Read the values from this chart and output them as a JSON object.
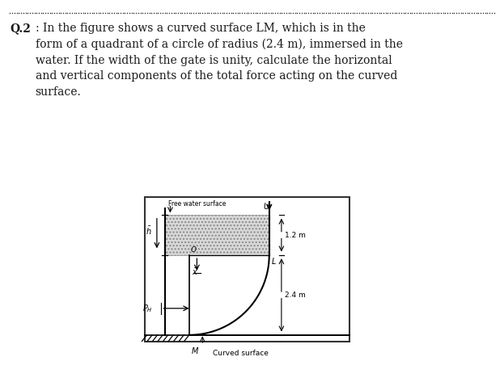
{
  "text_block": "Q.2: In the figure shows a curved surface LM, which is in the\nform of a quadrant of a circle of radius (2.4 m), immersed in the\nwater. If the width of the gate is unity, calculate the horizontal\nand vertical components of the total force acting on the curved\nsurface.",
  "fig_width": 6.23,
  "fig_height": 4.73,
  "dpi": 100,
  "bg_color": "#ffffff",
  "text_color": "#1a1a1a",
  "label_free_water": "Free water surface",
  "label_curved": "Curved surface",
  "label_U": "U",
  "label_L": "L",
  "label_O": "O",
  "label_M": "M",
  "label_12m": "1.2 m",
  "label_24m": "2.4 m",
  "bold_label": "Q.2"
}
